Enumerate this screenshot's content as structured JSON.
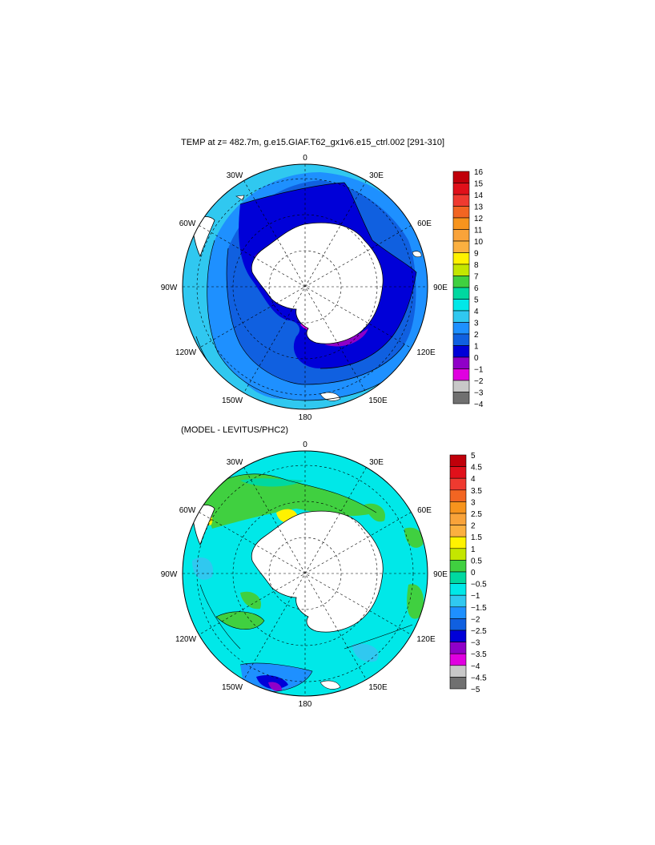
{
  "figure_title": "TEMP at z= 482.7m, g.e15.GIAF.T62_gx1v6.e15_ctrl.002 [291-310]",
  "difference_title": "(MODEL - LEVITUS/PHC2)",
  "longitude_labels": [
    "0",
    "30E",
    "60E",
    "90E",
    "120E",
    "150E",
    "180",
    "150W",
    "120W",
    "90W",
    "60W",
    "30W"
  ],
  "chart_data": [
    {
      "type": "heatmap",
      "projection": "south-polar-stereographic",
      "title": "TEMP at z= 482.7m, g.e15.GIAF.T62_gx1v6.e15_ctrl.002 [291-310]",
      "colorbar": {
        "levels": [
          "16",
          "15",
          "14",
          "13",
          "12",
          "11",
          "10",
          "9",
          "8",
          "7",
          "6",
          "5",
          "4",
          "3",
          "2",
          "1",
          "0",
          "−1",
          "−2",
          "−3",
          "−4"
        ],
        "colors": [
          "#c0000a",
          "#e0101a",
          "#ef3a30",
          "#f26522",
          "#f7941d",
          "#f9a33a",
          "#fbb040",
          "#fff200",
          "#c4e600",
          "#40d040",
          "#00d8a0",
          "#00e8e8",
          "#30c8f0",
          "#1e90ff",
          "#1060e0",
          "#0000d8",
          "#9000c8",
          "#e000e0",
          "#c8c8c8",
          "#707070"
        ]
      },
      "land_color": "#ffffff",
      "grid": true
    },
    {
      "type": "heatmap",
      "projection": "south-polar-stereographic",
      "title": "(MODEL - LEVITUS/PHC2)",
      "colorbar": {
        "levels": [
          "5",
          "4.5",
          "4",
          "3.5",
          "3",
          "2.5",
          "2",
          "1.5",
          "1",
          "0.5",
          "0",
          "−0.5",
          "−1",
          "−1.5",
          "−2",
          "−2.5",
          "−3",
          "−3.5",
          "−4",
          "−4.5",
          "−5"
        ],
        "colors": [
          "#c0000a",
          "#e0101a",
          "#ef3a30",
          "#f26522",
          "#f7941d",
          "#f9a33a",
          "#fbb040",
          "#fff200",
          "#c4e600",
          "#40d040",
          "#00d8a0",
          "#00e8e8",
          "#30c8f0",
          "#1e90ff",
          "#1060e0",
          "#0000d8",
          "#9000c8",
          "#e000e0",
          "#c8c8c8",
          "#707070"
        ]
      },
      "land_color": "#ffffff",
      "grid": true
    }
  ]
}
